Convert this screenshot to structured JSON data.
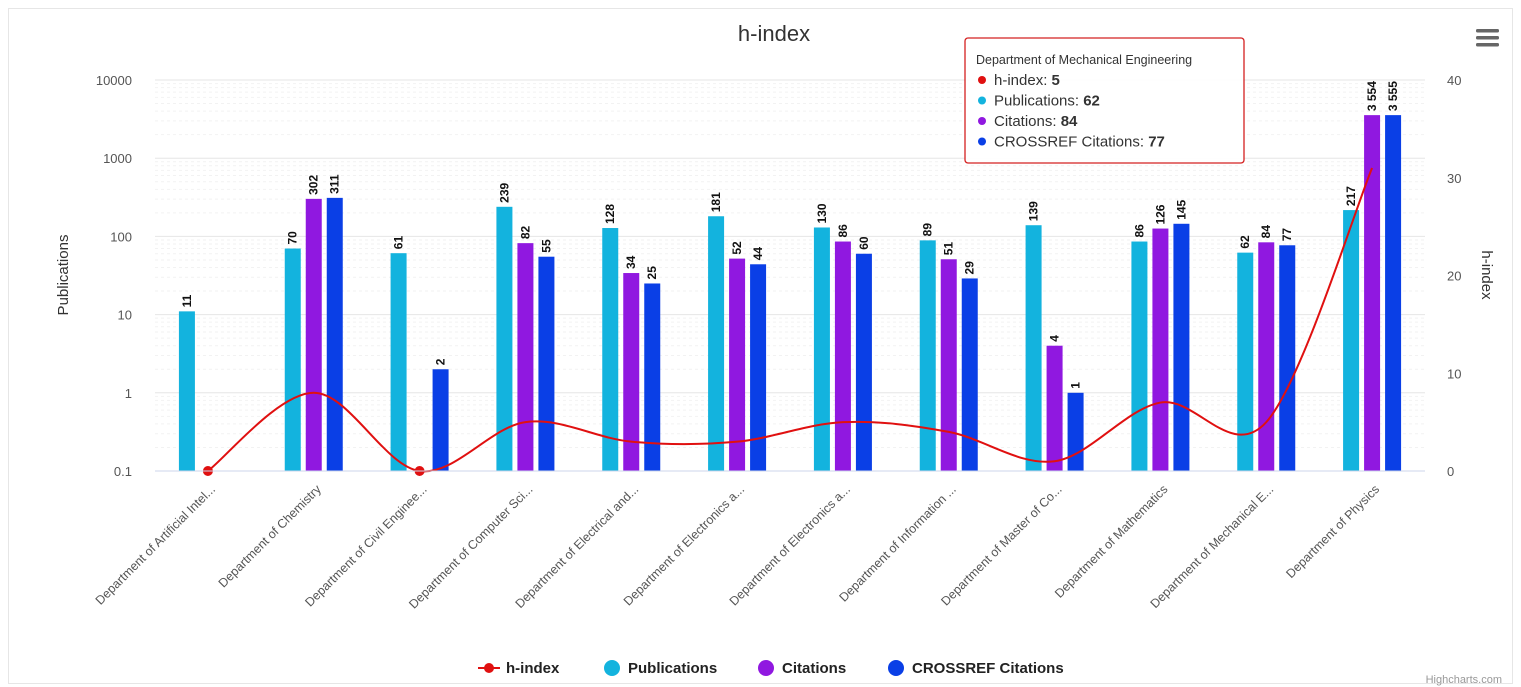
{
  "chart_data": {
    "type": "bar",
    "title": "h-index",
    "ylabel_left": "Publications",
    "ylabel_right": "h-index",
    "y_left_scale": "log",
    "y_left_ticks": [
      "10000",
      "1000",
      "100",
      "10",
      "1",
      "0.1"
    ],
    "y_left_range": [
      0.1,
      10000
    ],
    "y_right_ticks": [
      "40",
      "30",
      "20",
      "10",
      "0"
    ],
    "y_right_range": [
      0,
      40
    ],
    "grid": true,
    "legend_position": "bottom",
    "categories": [
      "Department of Artificial Intel...",
      "Department of Chemistry",
      "Department of Civil Enginee...",
      "Department of Computer Sci...",
      "Department of Electrical and...",
      "Department of Electronics a...",
      "Department of Electronics a...",
      "Department of Information ...",
      "Department of Master of Co...",
      "Department of Mathematics",
      "Department of Mechanical E...",
      "Department of Physics"
    ],
    "series": [
      {
        "name": "h-index",
        "kind": "spline",
        "axis": "right",
        "color": "#e01010",
        "values": [
          0,
          8,
          0,
          5,
          3,
          3,
          5,
          4,
          1,
          7,
          5,
          31
        ]
      },
      {
        "name": "Publications",
        "kind": "column",
        "axis": "left",
        "color": "#13b3de",
        "values": [
          11,
          70,
          61,
          239,
          128,
          181,
          130,
          89,
          139,
          86,
          62,
          217
        ],
        "labels": [
          "11",
          "70",
          "61",
          "239",
          "128",
          "181",
          "130",
          "89",
          "139",
          "86",
          "62",
          "217"
        ]
      },
      {
        "name": "Citations",
        "kind": "column",
        "axis": "left",
        "color": "#9018e0",
        "values": [
          null,
          302,
          null,
          82,
          34,
          52,
          86,
          51,
          4,
          126,
          84,
          3554
        ],
        "labels": [
          null,
          "302",
          null,
          "82",
          "34",
          "52",
          "86",
          "51",
          "4",
          "126",
          "84",
          "3 554"
        ]
      },
      {
        "name": "CROSSREF Citations",
        "kind": "column",
        "axis": "left",
        "color": "#0a3fe6",
        "values": [
          null,
          311,
          2,
          55,
          25,
          44,
          60,
          29,
          1,
          145,
          77,
          3555
        ],
        "labels": [
          null,
          "311",
          "2",
          "55",
          "25",
          "44",
          "60",
          "29",
          "1",
          "145",
          "77",
          "3 555"
        ]
      }
    ]
  },
  "tooltip": {
    "title": "Department of Mechanical Engineering",
    "items": [
      {
        "name": "h-index",
        "value": "5",
        "color": "#e01010"
      },
      {
        "name": "Publications",
        "value": "62",
        "color": "#13b3de"
      },
      {
        "name": "Citations",
        "value": "84",
        "color": "#9018e0"
      },
      {
        "name": "CROSSREF Citations",
        "value": "77",
        "color": "#0a3fe6"
      }
    ]
  },
  "credits": "Highcharts.com",
  "menu_icon": "hamburger-menu-icon"
}
